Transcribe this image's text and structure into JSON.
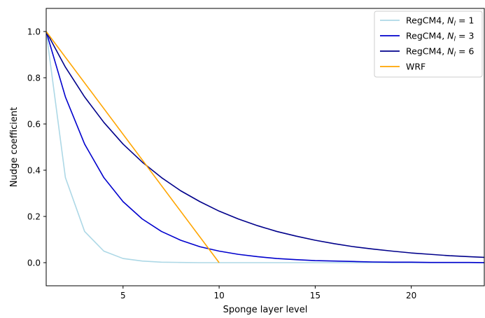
{
  "chart_data": {
    "type": "line",
    "title": "",
    "xlabel": "Sponge layer level",
    "ylabel": "Nudge coefficient",
    "xlim": [
      1,
      23.8
    ],
    "ylim": [
      -0.1,
      1.1
    ],
    "xticks": [
      5,
      10,
      15,
      20
    ],
    "yticks": [
      0.0,
      0.2,
      0.4,
      0.6,
      0.8,
      1.0
    ],
    "ytick_labels": [
      "0.0",
      "0.2",
      "0.4",
      "0.6",
      "0.8",
      "1.0"
    ],
    "grid": false,
    "legend_position": "top-right",
    "series": [
      {
        "name_prefix": "RegCM4, ",
        "name_math": "N",
        "name_sub": "l",
        "name_suffix": " = 1",
        "color": "#add8e6",
        "x": [
          1,
          2,
          3,
          4,
          5,
          6,
          7,
          8,
          9,
          10,
          11,
          12,
          13,
          14,
          15,
          16,
          17,
          18,
          19,
          20,
          21,
          22,
          23,
          24
        ],
        "y": [
          1.0,
          0.368,
          0.135,
          0.05,
          0.018,
          0.007,
          0.002,
          0.001,
          0.0,
          0.0,
          0.0,
          0.0,
          0.0,
          0.0,
          0.0,
          0.0,
          0.0,
          0.0,
          0.0,
          0.0,
          0.0,
          0.0,
          0.0,
          0.0
        ]
      },
      {
        "name_prefix": "RegCM4, ",
        "name_math": "N",
        "name_sub": "l",
        "name_suffix": " = 3",
        "color": "#0000cd",
        "x": [
          1,
          2,
          3,
          4,
          5,
          6,
          7,
          8,
          9,
          10,
          11,
          12,
          13,
          14,
          15,
          16,
          17,
          18,
          19,
          20,
          21,
          22,
          23,
          24
        ],
        "y": [
          1.0,
          0.717,
          0.513,
          0.368,
          0.264,
          0.189,
          0.135,
          0.097,
          0.069,
          0.05,
          0.036,
          0.026,
          0.018,
          0.013,
          0.009,
          0.007,
          0.005,
          0.003,
          0.002,
          0.002,
          0.001,
          0.001,
          0.001,
          0.0
        ]
      },
      {
        "name_prefix": "RegCM4, ",
        "name_math": "N",
        "name_sub": "l",
        "name_suffix": " = 6",
        "color": "#00008b",
        "x": [
          1,
          2,
          3,
          4,
          5,
          6,
          7,
          8,
          9,
          10,
          11,
          12,
          13,
          14,
          15,
          16,
          17,
          18,
          19,
          20,
          21,
          22,
          23,
          24
        ],
        "y": [
          1.0,
          0.846,
          0.717,
          0.607,
          0.513,
          0.435,
          0.368,
          0.311,
          0.264,
          0.223,
          0.189,
          0.16,
          0.135,
          0.115,
          0.097,
          0.082,
          0.069,
          0.059,
          0.05,
          0.042,
          0.036,
          0.03,
          0.026,
          0.022
        ]
      },
      {
        "name_prefix": "WRF",
        "name_math": "",
        "name_sub": "",
        "name_suffix": "",
        "color": "#ffa500",
        "x": [
          1,
          10
        ],
        "y": [
          1.0,
          0.0
        ]
      }
    ]
  }
}
